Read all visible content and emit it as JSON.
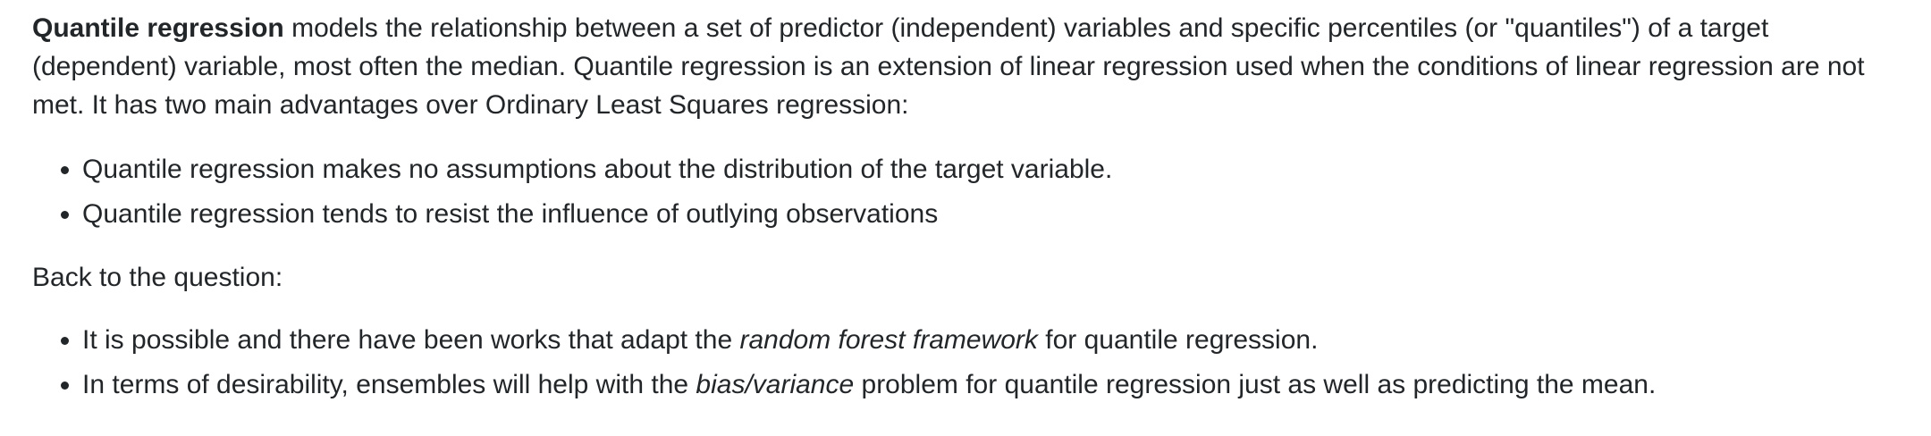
{
  "intro": {
    "term": "Quantile regression",
    "text": " models the relationship between a set of predictor (independent) variables and specific percentiles (or \"quantiles\") of a target (dependent) variable, most often the median. Quantile regression is an extension of linear regression used when the conditions of linear regression are not met. It has two main advantages over Ordinary Least Squares regression:"
  },
  "advantages": [
    "Quantile regression makes no assumptions about the distribution of the target variable.",
    "Quantile regression tends to resist the influence of outlying observations"
  ],
  "back_to_question": "Back to the question:",
  "answers": [
    {
      "before": "It is possible and there have been works that adapt the ",
      "emphasis": "random forest framework",
      "after": " for quantile regression."
    },
    {
      "before": "In terms of desirability, ensembles will help with the ",
      "emphasis": "bias/variance",
      "after": " problem for quantile regression just as well as predicting the mean."
    }
  ]
}
